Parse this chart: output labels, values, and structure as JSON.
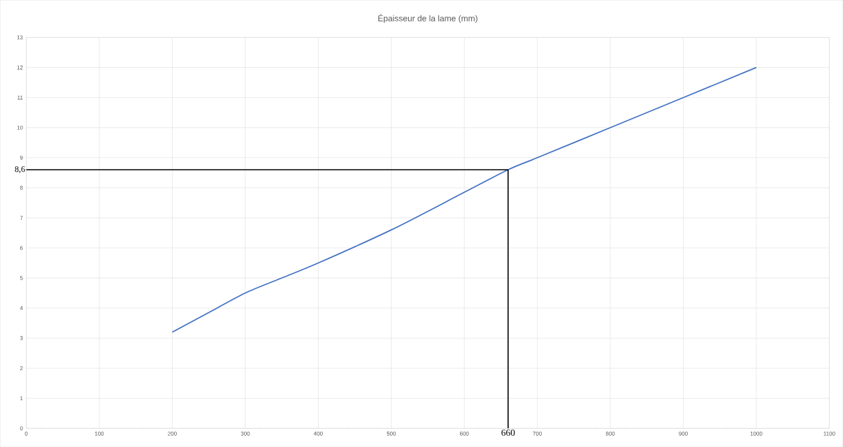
{
  "chart_data": {
    "type": "line",
    "title": "Épaisseur de la lame  (mm)",
    "x": [
      200,
      250,
      300,
      350,
      400,
      500,
      600,
      660,
      700,
      800,
      900,
      1000
    ],
    "series": [
      {
        "color": "#4472c4",
        "values": [
          3.2,
          3.85,
          4.5,
          5.0,
          5.5,
          6.6,
          7.85,
          8.6,
          9.0,
          10.0,
          11.0,
          12.0
        ]
      }
    ],
    "xlim": [
      0,
      1100
    ],
    "ylim": [
      0,
      13
    ],
    "xticks": [
      0,
      100,
      200,
      300,
      400,
      500,
      600,
      700,
      800,
      900,
      1000,
      1100
    ],
    "yticks": [
      0,
      1,
      2,
      3,
      4,
      5,
      6,
      7,
      8,
      9,
      10,
      11,
      12,
      13
    ],
    "grid": true,
    "legend": false,
    "marker": "none",
    "line_style": "solid",
    "ref_lines": [
      {
        "axis": "y",
        "value": 8.6,
        "label": "8,6",
        "color": "#000000"
      },
      {
        "axis": "x",
        "value": 660,
        "label": "660",
        "color": "#000000"
      }
    ]
  }
}
